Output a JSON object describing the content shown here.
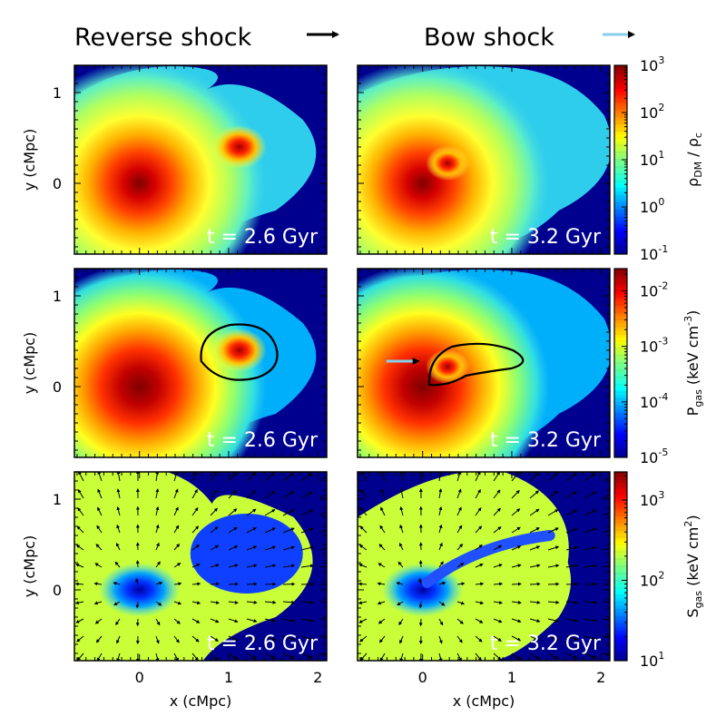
{
  "legend": {
    "reverse_label": "Reverse shock",
    "bow_label": "Bow shock",
    "reverse_color": "#000000",
    "bow_color": "#87CEEB"
  },
  "chart_data": {
    "type": "heatmap",
    "layout": "3 rows x 2 columns",
    "columns": [
      {
        "time": "t = 2.6 Gyr"
      },
      {
        "time": "t = 3.2 Gyr"
      }
    ],
    "rows": [
      {
        "quantity": "dark matter density",
        "colorbar_label_base": "ρ",
        "colorbar_label_sub": "DM",
        "colorbar_label_rest": " / ρ",
        "colorbar_label_sub2": "c",
        "cmap": "jet",
        "log_range": [
          -1,
          3
        ],
        "cb_ticks": [
          {
            "base": "10",
            "exp": "-1"
          },
          {
            "base": "10",
            "exp": "0"
          },
          {
            "base": "10",
            "exp": "1"
          },
          {
            "base": "10",
            "exp": "2"
          },
          {
            "base": "10",
            "exp": "3"
          }
        ]
      },
      {
        "quantity": "gas pressure",
        "colorbar_label_base": "P",
        "colorbar_label_sub": "gas",
        "colorbar_label_rest": " (keV cm",
        "colorbar_label_sup": "-3",
        "colorbar_label_end": ")",
        "cmap": "jet",
        "log_range": [
          -5,
          -1.6
        ],
        "cb_ticks": [
          {
            "base": "10",
            "exp": "-5"
          },
          {
            "base": "10",
            "exp": "-4"
          },
          {
            "base": "10",
            "exp": "-3"
          },
          {
            "base": "10",
            "exp": "-2"
          }
        ]
      },
      {
        "quantity": "gas entropy",
        "colorbar_label_base": "S",
        "colorbar_label_sub": "gas",
        "colorbar_label_rest": " (keV cm",
        "colorbar_label_sup": "2",
        "colorbar_label_end": ")",
        "cmap": "jet",
        "log_range": [
          1,
          3.35
        ],
        "cb_ticks": [
          {
            "base": "10",
            "exp": "1"
          },
          {
            "base": "10",
            "exp": "2"
          },
          {
            "base": "10",
            "exp": "3"
          }
        ]
      }
    ],
    "xlabel": "x (cMpc)",
    "ylabel": "y (cMpc)",
    "xlim": [
      -0.73,
      2.1
    ],
    "ylim": [
      -0.78,
      1.3
    ],
    "xticks": [
      0,
      1,
      2
    ],
    "xtick_labels": [
      "0",
      "1",
      "2"
    ],
    "yticks": [
      0,
      1
    ],
    "ytick_labels": [
      "0",
      "1"
    ],
    "main_halo_center": [
      0.0,
      0.0
    ],
    "subhalo_center_t26": [
      1.12,
      0.4
    ],
    "subhalo_center_t32": [
      0.28,
      0.22
    ]
  }
}
